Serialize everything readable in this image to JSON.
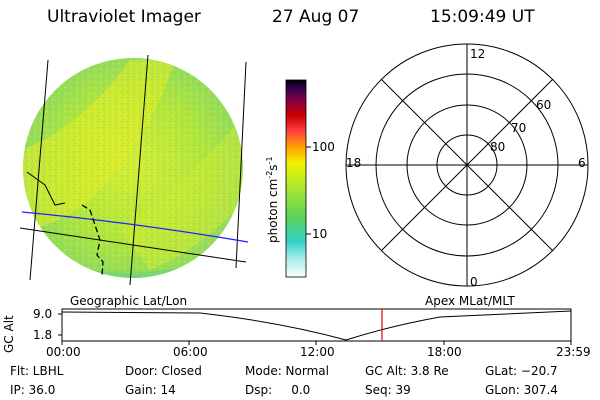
{
  "header": {
    "instrument": "Ultraviolet Imager",
    "date": "27 Aug 07",
    "time": "15:09:49 UT"
  },
  "colorbar": {
    "unit_label": "photon cm",
    "unit_exp1": "-2",
    "unit_mid": "s",
    "unit_exp2": "-1",
    "tick_100": "100",
    "tick_10": "10",
    "stops": [
      "#ffffff",
      "#a0eaea",
      "#32d2c8",
      "#5ad25a",
      "#a8e830",
      "#f0f000",
      "#ffa000",
      "#ff4040",
      "#c80000",
      "#80004a",
      "#30004a",
      "#000000"
    ]
  },
  "polar_plot": {
    "label_12": "12",
    "label_18": "18",
    "label_6": "6",
    "label_0": "0",
    "lat_60": "60",
    "lat_70": "70",
    "lat_80": "80"
  },
  "timeline": {
    "left_caption": "Geographic Lat/Lon",
    "right_caption": "Apex MLat/MLT",
    "axis_label": "GC Alt",
    "y_top": "9.0",
    "y_bottom": "1.8",
    "ticks": [
      "00:00",
      "06:00",
      "12:00",
      "18:00",
      "23:59"
    ],
    "current_time_marker_color": "#e00000"
  },
  "info": {
    "filter": "Flt: LBHL",
    "door": "Door: Closed",
    "mode": "Mode: Normal",
    "gc_alt": "GC Alt: 3.8 Re",
    "glat": "GLat: −20.7",
    "ip": "IP: 36.0",
    "gain": "Gain: 14",
    "dsp": "Dsp:     0.0",
    "seq": "Seq: 39",
    "glon": "GLon: 307.4"
  }
}
